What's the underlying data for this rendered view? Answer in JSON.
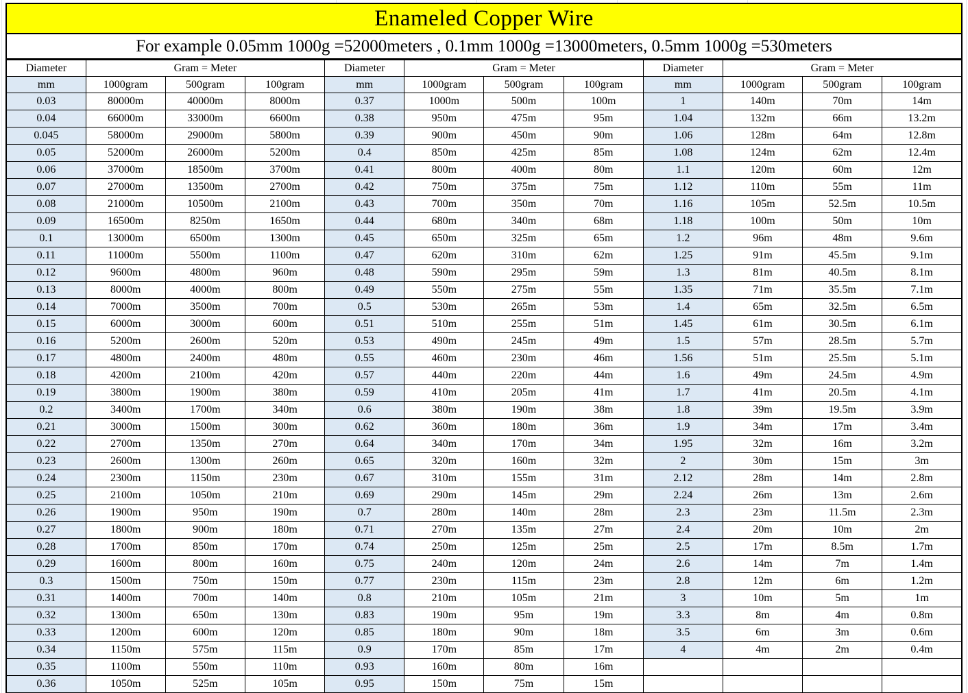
{
  "title": "Enameled Copper Wire",
  "subtitle": "For example 0.05mm 1000g =52000meters , 0.1mm 1000g =13000meters, 0.5mm 1000g =530meters",
  "colors": {
    "title_bg": "#ffff00",
    "diameter_col_bg": "#dce8f4",
    "cell_bg": "#ffffff",
    "border": "#000000",
    "text": "#000000"
  },
  "header": {
    "diameter_label": "Diameter",
    "gram_meter_label": "Gram = Meter",
    "mm_label": "mm",
    "weight_labels": [
      "1000gram",
      "500gram",
      "100gram"
    ]
  },
  "chart_data": {
    "type": "table",
    "title": "Enameled Copper Wire",
    "columns_per_group": [
      "Diameter mm",
      "1000gram",
      "500gram",
      "100gram"
    ],
    "groups": [
      {
        "rows": [
          [
            "0.03",
            "80000m",
            "40000m",
            "8000m"
          ],
          [
            "0.04",
            "66000m",
            "33000m",
            "6600m"
          ],
          [
            "0.045",
            "58000m",
            "29000m",
            "5800m"
          ],
          [
            "0.05",
            "52000m",
            "26000m",
            "5200m"
          ],
          [
            "0.06",
            "37000m",
            "18500m",
            "3700m"
          ],
          [
            "0.07",
            "27000m",
            "13500m",
            "2700m"
          ],
          [
            "0.08",
            "21000m",
            "10500m",
            "2100m"
          ],
          [
            "0.09",
            "16500m",
            "8250m",
            "1650m"
          ],
          [
            "0.1",
            "13000m",
            "6500m",
            "1300m"
          ],
          [
            "0.11",
            "11000m",
            "5500m",
            "1100m"
          ],
          [
            "0.12",
            "9600m",
            "4800m",
            "960m"
          ],
          [
            "0.13",
            "8000m",
            "4000m",
            "800m"
          ],
          [
            "0.14",
            "7000m",
            "3500m",
            "700m"
          ],
          [
            "0.15",
            "6000m",
            "3000m",
            "600m"
          ],
          [
            "0.16",
            "5200m",
            "2600m",
            "520m"
          ],
          [
            "0.17",
            "4800m",
            "2400m",
            "480m"
          ],
          [
            "0.18",
            "4200m",
            "2100m",
            "420m"
          ],
          [
            "0.19",
            "3800m",
            "1900m",
            "380m"
          ],
          [
            "0.2",
            "3400m",
            "1700m",
            "340m"
          ],
          [
            "0.21",
            "3000m",
            "1500m",
            "300m"
          ],
          [
            "0.22",
            "2700m",
            "1350m",
            "270m"
          ],
          [
            "0.23",
            "2600m",
            "1300m",
            "260m"
          ],
          [
            "0.24",
            "2300m",
            "1150m",
            "230m"
          ],
          [
            "0.25",
            "2100m",
            "1050m",
            "210m"
          ],
          [
            "0.26",
            "1900m",
            "950m",
            "190m"
          ],
          [
            "0.27",
            "1800m",
            "900m",
            "180m"
          ],
          [
            "0.28",
            "1700m",
            "850m",
            "170m"
          ],
          [
            "0.29",
            "1600m",
            "800m",
            "160m"
          ],
          [
            "0.3",
            "1500m",
            "750m",
            "150m"
          ],
          [
            "0.31",
            "1400m",
            "700m",
            "140m"
          ],
          [
            "0.32",
            "1300m",
            "650m",
            "130m"
          ],
          [
            "0.33",
            "1200m",
            "600m",
            "120m"
          ],
          [
            "0.34",
            "1150m",
            "575m",
            "115m"
          ],
          [
            "0.35",
            "1100m",
            "550m",
            "110m"
          ],
          [
            "0.36",
            "1050m",
            "525m",
            "105m"
          ]
        ]
      },
      {
        "rows": [
          [
            "0.37",
            "1000m",
            "500m",
            "100m"
          ],
          [
            "0.38",
            "950m",
            "475m",
            "95m"
          ],
          [
            "0.39",
            "900m",
            "450m",
            "90m"
          ],
          [
            "0.4",
            "850m",
            "425m",
            "85m"
          ],
          [
            "0.41",
            "800m",
            "400m",
            "80m"
          ],
          [
            "0.42",
            "750m",
            "375m",
            "75m"
          ],
          [
            "0.43",
            "700m",
            "350m",
            "70m"
          ],
          [
            "0.44",
            "680m",
            "340m",
            "68m"
          ],
          [
            "0.45",
            "650m",
            "325m",
            "65m"
          ],
          [
            "0.47",
            "620m",
            "310m",
            "62m"
          ],
          [
            "0.48",
            "590m",
            "295m",
            "59m"
          ],
          [
            "0.49",
            "550m",
            "275m",
            "55m"
          ],
          [
            "0.5",
            "530m",
            "265m",
            "53m"
          ],
          [
            "0.51",
            "510m",
            "255m",
            "51m"
          ],
          [
            "0.53",
            "490m",
            "245m",
            "49m"
          ],
          [
            "0.55",
            "460m",
            "230m",
            "46m"
          ],
          [
            "0.57",
            "440m",
            "220m",
            "44m"
          ],
          [
            "0.59",
            "410m",
            "205m",
            "41m"
          ],
          [
            "0.6",
            "380m",
            "190m",
            "38m"
          ],
          [
            "0.62",
            "360m",
            "180m",
            "36m"
          ],
          [
            "0.64",
            "340m",
            "170m",
            "34m"
          ],
          [
            "0.65",
            "320m",
            "160m",
            "32m"
          ],
          [
            "0.67",
            "310m",
            "155m",
            "31m"
          ],
          [
            "0.69",
            "290m",
            "145m",
            "29m"
          ],
          [
            "0.7",
            "280m",
            "140m",
            "28m"
          ],
          [
            "0.71",
            "270m",
            "135m",
            "27m"
          ],
          [
            "0.74",
            "250m",
            "125m",
            "25m"
          ],
          [
            "0.75",
            "240m",
            "120m",
            "24m"
          ],
          [
            "0.77",
            "230m",
            "115m",
            "23m"
          ],
          [
            "0.8",
            "210m",
            "105m",
            "21m"
          ],
          [
            "0.83",
            "190m",
            "95m",
            "19m"
          ],
          [
            "0.85",
            "180m",
            "90m",
            "18m"
          ],
          [
            "0.9",
            "170m",
            "85m",
            "17m"
          ],
          [
            "0.93",
            "160m",
            "80m",
            "16m"
          ],
          [
            "0.95",
            "150m",
            "75m",
            "15m"
          ]
        ]
      },
      {
        "rows": [
          [
            "1",
            "140m",
            "70m",
            "14m"
          ],
          [
            "1.04",
            "132m",
            "66m",
            "13.2m"
          ],
          [
            "1.06",
            "128m",
            "64m",
            "12.8m"
          ],
          [
            "1.08",
            "124m",
            "62m",
            "12.4m"
          ],
          [
            "1.1",
            "120m",
            "60m",
            "12m"
          ],
          [
            "1.12",
            "110m",
            "55m",
            "11m"
          ],
          [
            "1.16",
            "105m",
            "52.5m",
            "10.5m"
          ],
          [
            "1.18",
            "100m",
            "50m",
            "10m"
          ],
          [
            "1.2",
            "96m",
            "48m",
            "9.6m"
          ],
          [
            "1.25",
            "91m",
            "45.5m",
            "9.1m"
          ],
          [
            "1.3",
            "81m",
            "40.5m",
            "8.1m"
          ],
          [
            "1.35",
            "71m",
            "35.5m",
            "7.1m"
          ],
          [
            "1.4",
            "65m",
            "32.5m",
            "6.5m"
          ],
          [
            "1.45",
            "61m",
            "30.5m",
            "6.1m"
          ],
          [
            "1.5",
            "57m",
            "28.5m",
            "5.7m"
          ],
          [
            "1.56",
            "51m",
            "25.5m",
            "5.1m"
          ],
          [
            "1.6",
            "49m",
            "24.5m",
            "4.9m"
          ],
          [
            "1.7",
            "41m",
            "20.5m",
            "4.1m"
          ],
          [
            "1.8",
            "39m",
            "19.5m",
            "3.9m"
          ],
          [
            "1.9",
            "34m",
            "17m",
            "3.4m"
          ],
          [
            "1.95",
            "32m",
            "16m",
            "3.2m"
          ],
          [
            "2",
            "30m",
            "15m",
            "3m"
          ],
          [
            "2.12",
            "28m",
            "14m",
            "2.8m"
          ],
          [
            "2.24",
            "26m",
            "13m",
            "2.6m"
          ],
          [
            "2.3",
            "23m",
            "11.5m",
            "2.3m"
          ],
          [
            "2.4",
            "20m",
            "10m",
            "2m"
          ],
          [
            "2.5",
            "17m",
            "8.5m",
            "1.7m"
          ],
          [
            "2.6",
            "14m",
            "7m",
            "1.4m"
          ],
          [
            "2.8",
            "12m",
            "6m",
            "1.2m"
          ],
          [
            "3",
            "10m",
            "5m",
            "1m"
          ],
          [
            "3.3",
            "8m",
            "4m",
            "0.8m"
          ],
          [
            "3.5",
            "6m",
            "3m",
            "0.6m"
          ],
          [
            "4",
            "4m",
            "2m",
            "0.4m"
          ],
          [
            "",
            "",
            "",
            ""
          ],
          [
            "",
            "",
            "",
            ""
          ]
        ]
      }
    ]
  }
}
